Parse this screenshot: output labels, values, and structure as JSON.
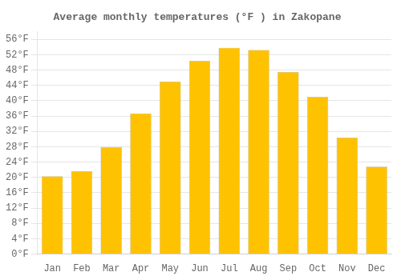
{
  "chart_data": {
    "type": "bar",
    "title": "Average monthly temperatures (°F ) in Zakopane",
    "categories": [
      "Jan",
      "Feb",
      "Mar",
      "Apr",
      "May",
      "Jun",
      "Jul",
      "Aug",
      "Sep",
      "Oct",
      "Nov",
      "Dec"
    ],
    "values": [
      20.3,
      21.6,
      27.9,
      36.7,
      45.0,
      50.4,
      53.8,
      53.2,
      47.5,
      41.0,
      30.4,
      22.8
    ],
    "color": "#FFC200",
    "ylim": [
      0,
      58
    ],
    "yticks": [
      {
        "value": 0,
        "label": "0°F"
      },
      {
        "value": 4,
        "label": "4°F"
      },
      {
        "value": 8,
        "label": "8°F"
      },
      {
        "value": 12,
        "label": "12°F"
      },
      {
        "value": 16,
        "label": "16°F"
      },
      {
        "value": 20,
        "label": "20°F"
      },
      {
        "value": 24,
        "label": "24°F"
      },
      {
        "value": 28,
        "label": "28°F"
      },
      {
        "value": 32,
        "label": "32°F"
      },
      {
        "value": 36,
        "label": "36°F"
      },
      {
        "value": 40,
        "label": "40°F"
      },
      {
        "value": 44,
        "label": "44°F"
      },
      {
        "value": 48,
        "label": "48°F"
      },
      {
        "value": 52,
        "label": "52°F"
      },
      {
        "value": 56,
        "label": "56°F"
      }
    ],
    "grid": true
  }
}
